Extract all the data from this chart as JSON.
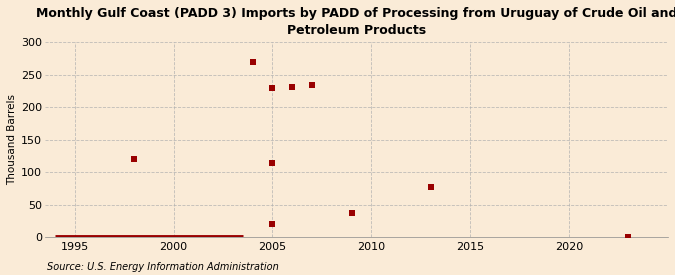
{
  "title": "Monthly Gulf Coast (PADD 3) Imports by PADD of Processing from Uruguay of Crude Oil and\nPetroleum Products",
  "ylabel": "Thousand Barrels",
  "source": "Source: U.S. Energy Information Administration",
  "background_color": "#faebd7",
  "plot_bg_color": "#faebd7",
  "grid_color": "#b0b0b0",
  "data_color": "#990000",
  "xlim": [
    1993.5,
    2025
  ],
  "ylim": [
    0,
    300
  ],
  "yticks": [
    0,
    50,
    100,
    150,
    200,
    250,
    300
  ],
  "xticks": [
    1995,
    2000,
    2005,
    2010,
    2015,
    2020
  ],
  "scatter_x": [
    1998,
    2004,
    2005,
    2005,
    2006,
    2006,
    2007,
    2005,
    2009,
    2013,
    2023
  ],
  "scatter_y": [
    120,
    270,
    230,
    20,
    232,
    232,
    235,
    115,
    38,
    78,
    1
  ],
  "line_x_start": 1994,
  "line_x_end": 2003.5,
  "marker_size": 18,
  "title_fontsize": 9,
  "ylabel_fontsize": 7.5,
  "tick_fontsize": 8,
  "source_fontsize": 7
}
